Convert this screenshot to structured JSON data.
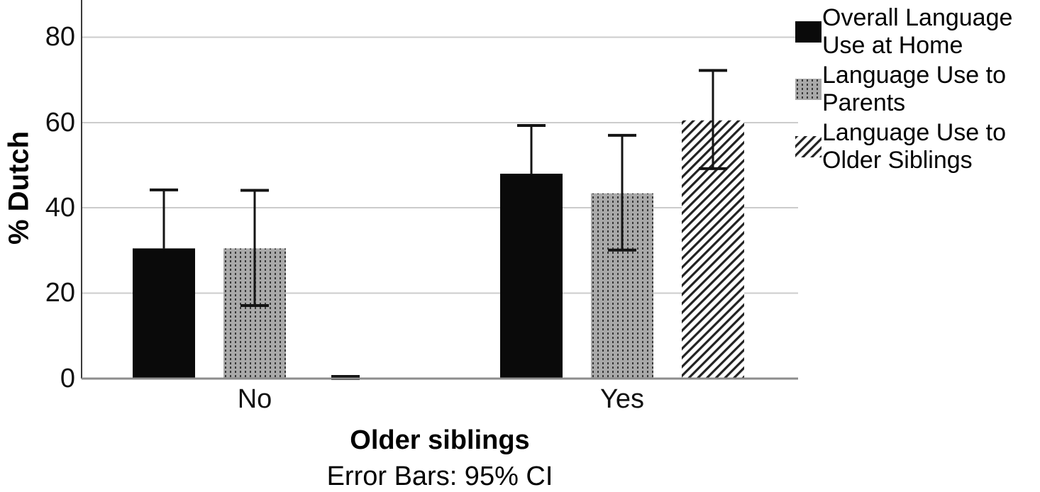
{
  "chart_data": {
    "type": "bar",
    "title": "",
    "ylabel": "% Dutch",
    "xlabel": "Older siblings",
    "caption": "Error Bars: 95% CI",
    "categories": [
      "No",
      "Yes"
    ],
    "yticks": [
      0,
      20,
      40,
      60,
      80
    ],
    "ylim": [
      0,
      88
    ],
    "grid": "horizontal",
    "legend_position": "top-right",
    "error_bars": "95% CI",
    "series": [
      {
        "id": "overall",
        "name": "Overall Language Use at Home",
        "fill_style": "solid-black",
        "values": [
          30.5,
          48.0
        ],
        "ci_low": [
          null,
          null
        ],
        "ci_high": [
          44.2,
          59.3
        ]
      },
      {
        "id": "parents",
        "name": "Language Use to Parents",
        "fill_style": "gray-dotted",
        "values": [
          30.5,
          43.4
        ],
        "ci_low": [
          17.1,
          30.1
        ],
        "ci_high": [
          44.1,
          57.0
        ]
      },
      {
        "id": "siblings",
        "name": "Language Use to Older Siblings",
        "fill_style": "diagonal-hatch",
        "values": [
          0.3,
          60.5
        ],
        "ci_low": [
          0,
          49.2
        ],
        "ci_high": [
          0.5,
          72.2
        ]
      }
    ],
    "colors": {
      "bar_black": "#0a0a0a",
      "dotted_bg": "#a9a9a9",
      "dotted_dot": "#383838",
      "hatch_bg": "#ffffff",
      "hatch_line": "#222222",
      "gridline": "#cccccc",
      "axis_y": "#3a3a3a",
      "axis_x": "#8c8c8c",
      "error_bar": "#141414",
      "text": "#000000"
    }
  },
  "legend": {
    "items": [
      {
        "series": "overall",
        "swatch": "solid-black",
        "lines": [
          "Overall Language",
          "Use at Home"
        ]
      },
      {
        "series": "parents",
        "swatch": "gray-dotted",
        "lines": [
          "Language Use to",
          "Parents"
        ]
      },
      {
        "series": "siblings",
        "swatch": "diagonal-hatch",
        "lines": [
          "Language Use to",
          "Older Siblings"
        ]
      }
    ]
  }
}
